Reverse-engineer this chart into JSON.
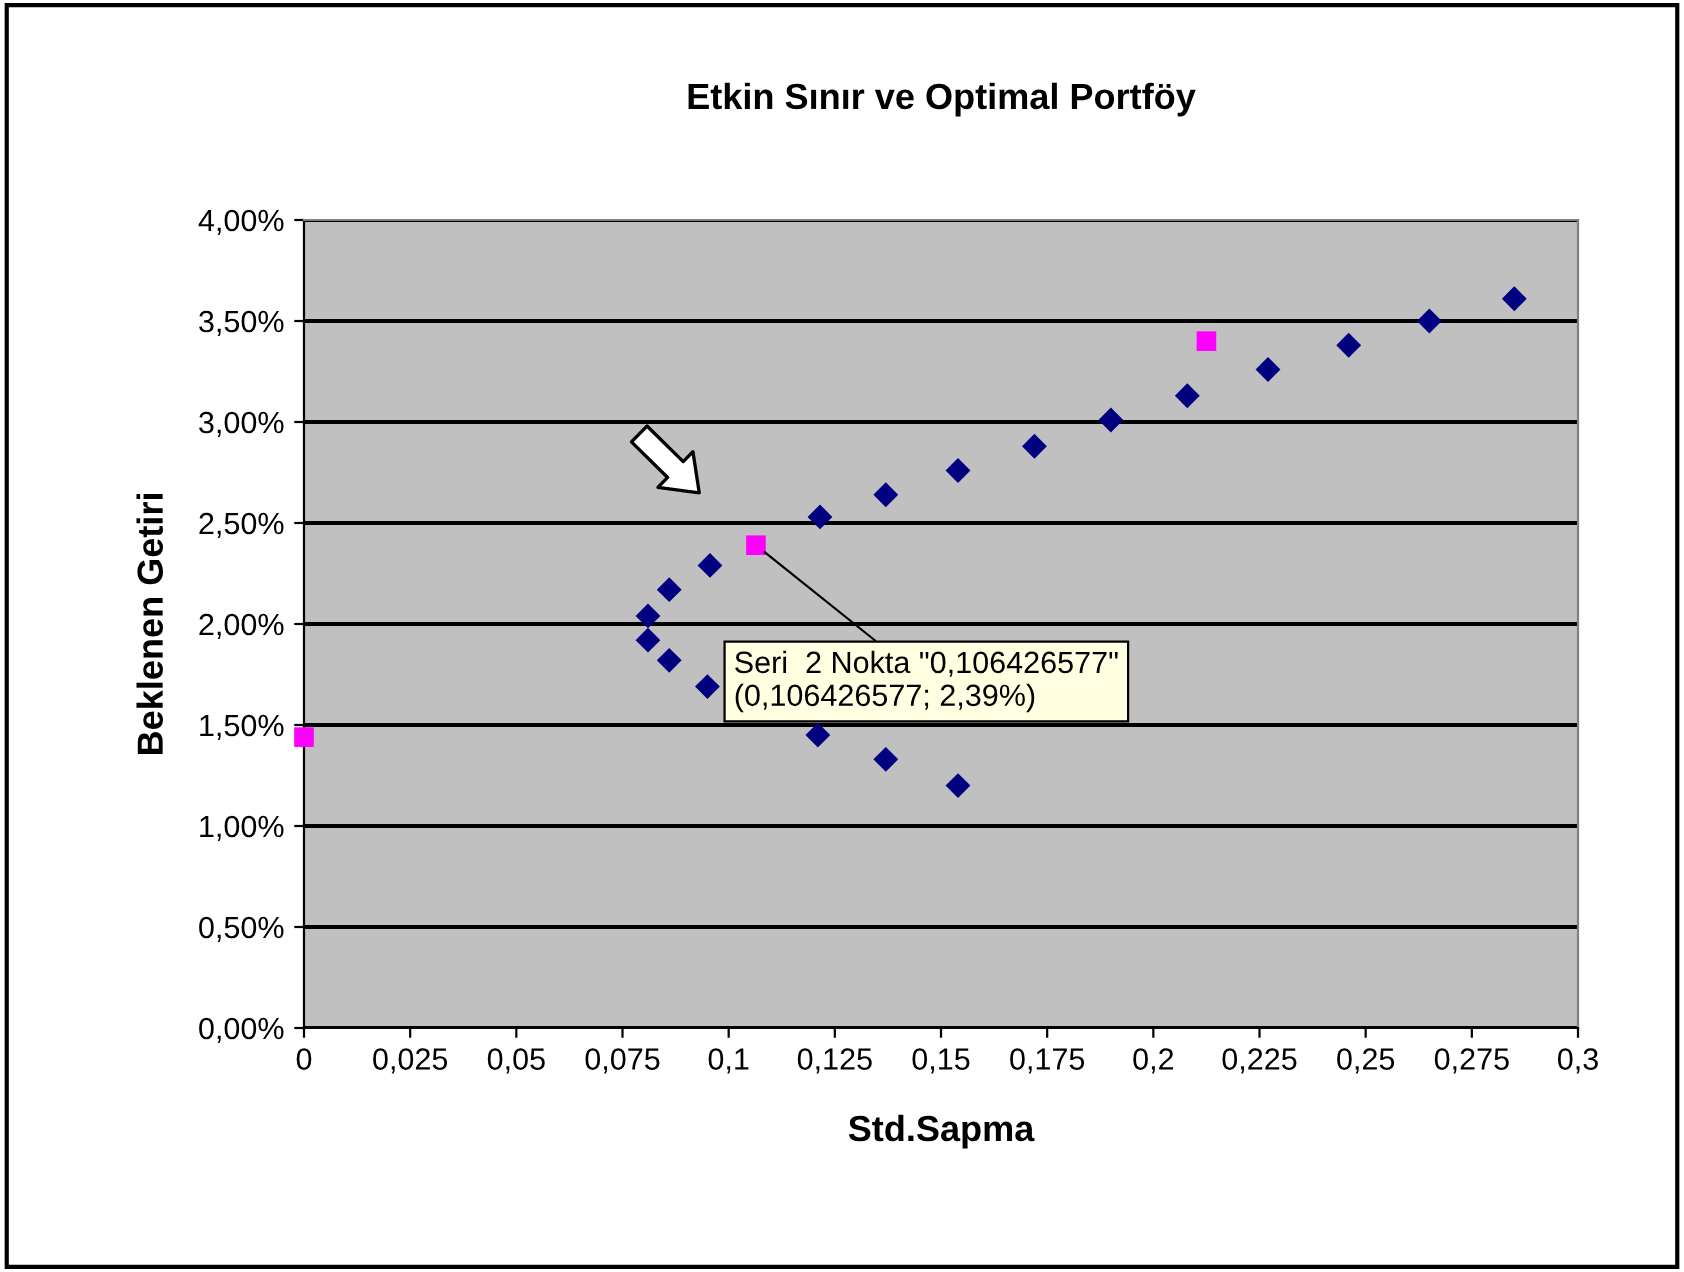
{
  "chart_data": {
    "type": "scatter",
    "title": "Etkin Sınır ve Optimal Portföy",
    "xlabel": "Std.Sapma",
    "ylabel": "Beklenen Getiri",
    "series": [
      {
        "color": "#000080",
        "marker": "diamond",
        "x": [
          0.081,
          0.081,
          0.086,
          0.086,
          0.0956,
          0.095,
          0.107,
          0.1215,
          0.121,
          0.137,
          0.137,
          0.154,
          0.154,
          0.172,
          0.19,
          0.208,
          0.227,
          0.246,
          0.265,
          0.285
        ],
        "values": [
          2.04,
          1.92,
          2.17,
          1.82,
          2.29,
          1.69,
          null,
          2.53,
          1.45,
          2.64,
          1.33,
          2.76,
          1.2,
          2.88,
          3.01,
          3.13,
          3.26,
          3.38,
          3.5,
          3.61
        ]
      },
      {
        "color": "#ff00ff",
        "marker": "square",
        "x": [
          0,
          0.106426577,
          0.2125
        ],
        "values": [
          1.44,
          2.39,
          3.4
        ]
      }
    ],
    "xlim": [
      0,
      0.3
    ],
    "xticks": [
      {
        "value": 0,
        "label": "0"
      },
      {
        "value": 0.025,
        "label": "0,025"
      },
      {
        "value": 0.05,
        "label": "0,05"
      },
      {
        "value": 0.075,
        "label": "0,075"
      },
      {
        "value": 0.1,
        "label": "0,1"
      },
      {
        "value": 0.125,
        "label": "0,125"
      },
      {
        "value": 0.15,
        "label": "0,15"
      },
      {
        "value": 0.175,
        "label": "0,175"
      },
      {
        "value": 0.2,
        "label": "0,2"
      },
      {
        "value": 0.225,
        "label": "0,225"
      },
      {
        "value": 0.25,
        "label": "0,25"
      },
      {
        "value": 0.275,
        "label": "0,275"
      },
      {
        "value": 0.3,
        "label": "0,3"
      }
    ],
    "ylim": [
      0,
      4
    ],
    "yticks": [
      {
        "value": 0,
        "label": "0,00%"
      },
      {
        "value": 0.5,
        "label": "0,50%"
      },
      {
        "value": 1,
        "label": "1,00%"
      },
      {
        "value": 1.5,
        "label": "1,50%"
      },
      {
        "value": 2,
        "label": "2,00%"
      },
      {
        "value": 2.5,
        "label": "2,50%"
      },
      {
        "value": 3,
        "label": "3,00%"
      },
      {
        "value": 3.5,
        "label": "3,50%"
      },
      {
        "value": 4,
        "label": "4,00%"
      }
    ],
    "grid": "y",
    "legend": false,
    "annotations": [
      {
        "text": "Seri  2 Nokta \"0,106426577\"\n(0,106426577; 2,39%)",
        "x": 0.106426577,
        "y": 2.39
      }
    ]
  }
}
